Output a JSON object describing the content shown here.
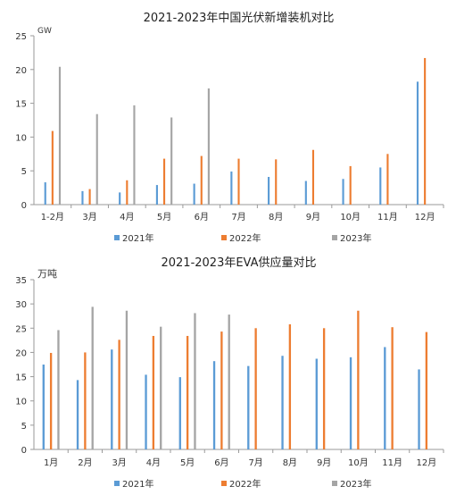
{
  "chart_data": [
    {
      "type": "bar",
      "title": "2021-2023年中国光伏新增装机对比",
      "ylabel": "GW",
      "xlabel": "",
      "ylim": [
        0,
        25
      ],
      "yticks": [
        0,
        5,
        10,
        15,
        20,
        25
      ],
      "grid": false,
      "legend_position": "bottom",
      "categories": [
        "1-2月",
        "3月",
        "4月",
        "5月",
        "6月",
        "7月",
        "8月",
        "9月",
        "10月",
        "11月",
        "12月"
      ],
      "series": [
        {
          "name": "2021年",
          "color": "#5B9BD5",
          "values": [
            3.3,
            2.0,
            1.8,
            2.9,
            3.1,
            4.9,
            4.1,
            3.5,
            3.8,
            5.5,
            18.2
          ]
        },
        {
          "name": "2022年",
          "color": "#ED7D31",
          "values": [
            10.9,
            2.3,
            3.6,
            6.8,
            7.2,
            6.8,
            6.7,
            8.1,
            5.7,
            7.5,
            21.7
          ]
        },
        {
          "name": "2023年",
          "color": "#A5A5A5",
          "values": [
            20.4,
            13.4,
            14.7,
            12.9,
            17.2,
            null,
            null,
            null,
            null,
            null,
            null
          ]
        }
      ]
    },
    {
      "type": "bar",
      "title": "2021-2023年EVA供应量对比",
      "ylabel": "万吨",
      "xlabel": "",
      "ylim": [
        0,
        35
      ],
      "yticks": [
        0,
        5,
        10,
        15,
        20,
        25,
        30,
        35
      ],
      "grid": false,
      "legend_position": "bottom",
      "categories": [
        "1月",
        "2月",
        "3月",
        "4月",
        "5月",
        "6月",
        "7月",
        "8月",
        "9月",
        "10月",
        "11月",
        "12月"
      ],
      "series": [
        {
          "name": "2021年",
          "color": "#5B9BD5",
          "values": [
            17.5,
            14.3,
            20.6,
            15.4,
            14.9,
            18.2,
            17.2,
            19.3,
            18.7,
            19.0,
            21.1,
            16.5
          ]
        },
        {
          "name": "2022年",
          "color": "#ED7D31",
          "values": [
            19.9,
            20.0,
            22.6,
            23.4,
            23.4,
            24.3,
            25.0,
            25.8,
            25.0,
            28.6,
            25.2,
            24.2
          ]
        },
        {
          "name": "2023年",
          "color": "#A5A5A5",
          "values": [
            24.6,
            29.4,
            28.6,
            25.3,
            28.1,
            27.8,
            null,
            null,
            null,
            null,
            null,
            null
          ]
        }
      ]
    }
  ]
}
